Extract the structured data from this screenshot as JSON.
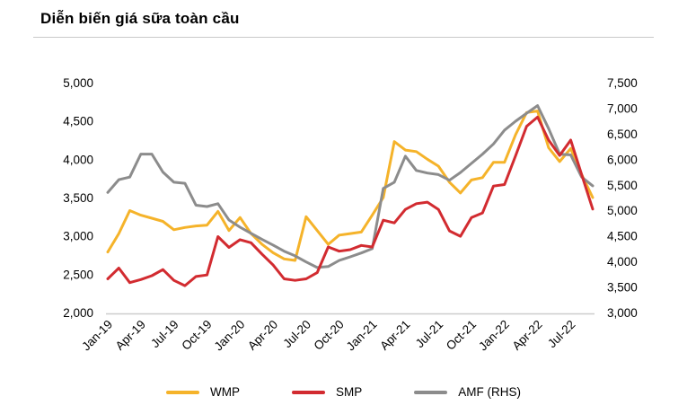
{
  "header": {
    "title": "Diễn biến giá sữa toàn cầu"
  },
  "chart_data": {
    "type": "line",
    "title": "Diễn biến giá sữa toàn cầu",
    "legend_position": "bottom",
    "grid": "baseline-only",
    "months": [
      "Jan-19",
      "Feb-19",
      "Mar-19",
      "Apr-19",
      "May-19",
      "Jun-19",
      "Jul-19",
      "Aug-19",
      "Sep-19",
      "Oct-19",
      "Nov-19",
      "Dec-19",
      "Jan-20",
      "Feb-20",
      "Mar-20",
      "Apr-20",
      "May-20",
      "Jun-20",
      "Jul-20",
      "Aug-20",
      "Sep-20",
      "Oct-20",
      "Nov-20",
      "Dec-20",
      "Jan-21",
      "Feb-21",
      "Mar-21",
      "Apr-21",
      "May-21",
      "Jun-21",
      "Jul-21",
      "Aug-21",
      "Sep-21",
      "Oct-21",
      "Nov-21",
      "Dec-21",
      "Jan-22",
      "Feb-22",
      "Mar-22",
      "Apr-22",
      "May-22",
      "Jun-22",
      "Jul-22",
      "Aug-22",
      "Sep-22"
    ],
    "x_tick_labels": [
      "Jan-19",
      "Apr-19",
      "Jul-19",
      "Oct-19",
      "Jan-20",
      "Apr-20",
      "Jul-20",
      "Oct-20",
      "Jan-21",
      "Apr-21",
      "Jul-21",
      "Oct-21",
      "Jan-22",
      "Apr-22",
      "Jul-22"
    ],
    "left_axis": {
      "min": 2000,
      "max": 5000,
      "step": 500,
      "tick_labels": [
        "5,000",
        "4,500",
        "4,000",
        "3,500",
        "3,000",
        "2,500",
        "2,000"
      ]
    },
    "right_axis": {
      "min": 3000,
      "max": 7500,
      "step": 500,
      "tick_labels": [
        "7,500",
        "7,000",
        "6,500",
        "6,000",
        "5,500",
        "5,000",
        "4,500",
        "4,000",
        "3,500",
        "3,000"
      ]
    },
    "series": [
      {
        "name": "WMP",
        "axis": "left",
        "color": "#F5B32A",
        "values": [
          2790,
          3030,
          3330,
          3270,
          3230,
          3190,
          3080,
          3110,
          3130,
          3140,
          3320,
          3070,
          3240,
          3030,
          2890,
          2780,
          2700,
          2680,
          3250,
          3070,
          2890,
          3010,
          3030,
          3050,
          3270,
          3500,
          4230,
          4120,
          4100,
          4000,
          3910,
          3700,
          3560,
          3730,
          3760,
          3960,
          3960,
          4320,
          4610,
          4630,
          4150,
          3970,
          4140,
          3800,
          3500
        ]
      },
      {
        "name": "SMP",
        "axis": "left",
        "color": "#D22B30",
        "values": [
          2440,
          2580,
          2390,
          2430,
          2480,
          2560,
          2420,
          2350,
          2470,
          2490,
          2990,
          2850,
          2950,
          2910,
          2760,
          2620,
          2440,
          2420,
          2440,
          2520,
          2855,
          2800,
          2820,
          2875,
          2855,
          3205,
          3170,
          3345,
          3420,
          3440,
          3345,
          3065,
          2995,
          3240,
          3300,
          3650,
          3670,
          4045,
          4430,
          4550,
          4250,
          4050,
          4250,
          3800,
          3350
        ]
      },
      {
        "name": "AMF (RHS)",
        "axis": "right",
        "color": "#8C8C8C",
        "values": [
          5350,
          5600,
          5650,
          6100,
          6100,
          5750,
          5550,
          5530,
          5100,
          5075,
          5130,
          4810,
          4670,
          4550,
          4430,
          4320,
          4200,
          4110,
          3990,
          3880,
          3900,
          4020,
          4090,
          4165,
          4250,
          5430,
          5550,
          6060,
          5780,
          5730,
          5700,
          5590,
          5740,
          5920,
          6100,
          6300,
          6570,
          6745,
          6900,
          7050,
          6600,
          6100,
          6085,
          5650,
          5480
        ]
      }
    ]
  }
}
